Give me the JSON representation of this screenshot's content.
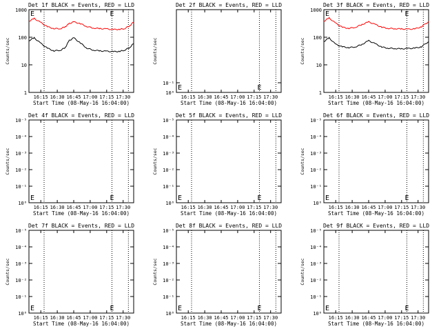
{
  "figure": {
    "x_ticks": [
      "16:15",
      "16:30",
      "16:45",
      "17:00",
      "17:15",
      "17:30"
    ],
    "x_tick_hours": [
      16.25,
      16.5,
      16.75,
      17.0,
      17.25,
      17.5
    ],
    "xlabel": "Start Time (08-May-16 16:04:00)",
    "ylabel": "Counts/sec",
    "vline_hours": [
      16.3,
      17.33,
      17.58
    ],
    "marker_letter": "E",
    "colors": {
      "events": "#000000",
      "lld": "#ff0000",
      "background": "#ffffff"
    }
  },
  "chart_data": [
    {
      "type": "line",
      "title": "Det 1f BLACK = Events, RED = LLD",
      "scale": "log",
      "y_ticks": [
        "1000",
        "100",
        "10",
        "1"
      ],
      "ylim": [
        1,
        1000
      ],
      "xlim": [
        16.07,
        17.66
      ],
      "series": [
        {
          "key": "lld",
          "color": "#ff0000",
          "x": [
            16.07,
            16.15,
            16.25,
            16.35,
            16.45,
            16.55,
            16.62,
            16.68,
            16.75,
            16.85,
            16.95,
            17.05,
            17.15,
            17.25,
            17.35,
            17.45,
            17.52,
            17.6,
            17.66
          ],
          "y": [
            380,
            480,
            340,
            240,
            205,
            205,
            240,
            310,
            360,
            310,
            245,
            215,
            205,
            200,
            190,
            195,
            205,
            260,
            360
          ]
        },
        {
          "key": "events",
          "color": "#000000",
          "x": [
            16.07,
            16.15,
            16.25,
            16.35,
            16.45,
            16.55,
            16.62,
            16.68,
            16.75,
            16.85,
            16.95,
            17.05,
            17.15,
            17.25,
            17.35,
            17.45,
            17.52,
            17.6,
            17.66
          ],
          "y": [
            75,
            95,
            60,
            40,
            32,
            34,
            42,
            75,
            95,
            62,
            40,
            34,
            32,
            31,
            30,
            31,
            34,
            42,
            60
          ]
        }
      ]
    },
    {
      "type": "line",
      "title": "Det 2f BLACK = Events, RED = LLD",
      "scale": "empty",
      "y_ticks": [
        "10⁻¹",
        "10⁰"
      ],
      "series": []
    },
    {
      "type": "line",
      "title": "Det 3f BLACK = Events, RED = LLD",
      "scale": "log",
      "y_ticks": [
        "1000",
        "100",
        "10",
        "1"
      ],
      "ylim": [
        1,
        1000
      ],
      "xlim": [
        16.07,
        17.66
      ],
      "series": [
        {
          "key": "lld",
          "color": "#ff0000",
          "x": [
            16.07,
            16.15,
            16.25,
            16.35,
            16.45,
            16.55,
            16.65,
            16.75,
            16.85,
            16.95,
            17.05,
            17.15,
            17.25,
            17.35,
            17.45,
            17.55,
            17.66
          ],
          "y": [
            380,
            500,
            320,
            230,
            210,
            230,
            290,
            360,
            290,
            230,
            210,
            205,
            200,
            195,
            200,
            240,
            370
          ]
        },
        {
          "key": "events",
          "color": "#000000",
          "x": [
            16.07,
            16.15,
            16.25,
            16.35,
            16.45,
            16.55,
            16.65,
            16.75,
            16.85,
            16.95,
            17.05,
            17.15,
            17.25,
            17.35,
            17.45,
            17.55,
            17.66
          ],
          "y": [
            70,
            95,
            55,
            45,
            42,
            45,
            55,
            75,
            58,
            44,
            40,
            39,
            38,
            39,
            40,
            45,
            70
          ]
        }
      ]
    },
    {
      "type": "line",
      "title": "Det 4f BLACK = Events, RED = LLD",
      "scale": "empty",
      "y_ticks": [
        "10⁻⁵",
        "10⁻⁴",
        "10⁻³",
        "10⁻²",
        "10⁻¹",
        "10⁰"
      ],
      "series": []
    },
    {
      "type": "line",
      "title": "Det 5f BLACK = Events, RED = LLD",
      "scale": "empty",
      "y_ticks": [
        "10⁻⁵",
        "10⁻⁴",
        "10⁻³",
        "10⁻²",
        "10⁻¹",
        "10⁰"
      ],
      "series": []
    },
    {
      "type": "line",
      "title": "Det 6f BLACK = Events, RED = LLD",
      "scale": "empty",
      "y_ticks": [
        "10⁻⁵",
        "10⁻⁴",
        "10⁻³",
        "10⁻²",
        "10⁻¹",
        "10⁰"
      ],
      "series": []
    },
    {
      "type": "line",
      "title": "Det 7f BLACK = Events, RED = LLD",
      "scale": "empty",
      "y_ticks": [
        "10⁻⁵",
        "10⁻⁴",
        "10⁻³",
        "10⁻²",
        "10⁻¹",
        "10⁰"
      ],
      "series": []
    },
    {
      "type": "line",
      "title": "Det 8f BLACK = Events, RED = LLD",
      "scale": "empty",
      "y_ticks": [
        "10⁻⁵",
        "10⁻⁴",
        "10⁻³",
        "10⁻²",
        "10⁻¹",
        "10⁰"
      ],
      "series": []
    },
    {
      "type": "line",
      "title": "Det 9f BLACK = Events, RED = LLD",
      "scale": "empty",
      "y_ticks": [
        "10⁻⁵",
        "10⁻⁴",
        "10⁻³",
        "10⁻²",
        "10⁻¹",
        "10⁰"
      ],
      "series": []
    }
  ]
}
